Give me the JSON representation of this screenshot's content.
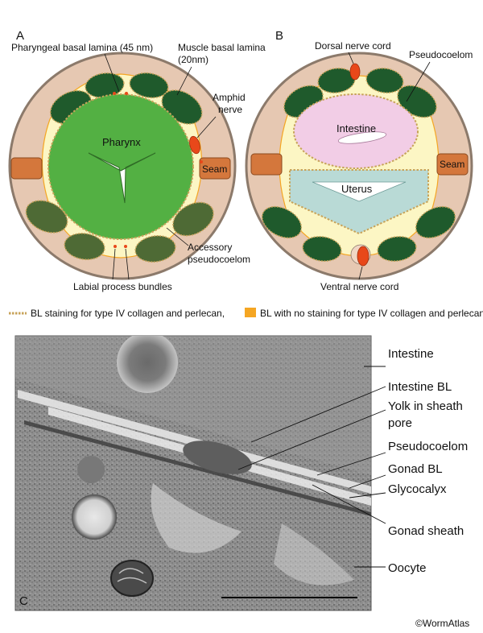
{
  "panels": {
    "a": "A",
    "b": "B",
    "c": "C"
  },
  "panel_a": {
    "pharyngeal_bl": "Pharyngeal basal lamina (45 nm)",
    "muscle_bl_line1": "Muscle basal lamina",
    "muscle_bl_line2": "(20nm)",
    "amphid_line1": "Amphid",
    "amphid_line2": "nerve",
    "pharynx": "Pharynx",
    "seam": "Seam",
    "accessory_line1": "Accessory",
    "accessory_line2": "pseudocoelom",
    "labial": "Labial process bundles"
  },
  "panel_b": {
    "dorsal": "Dorsal nerve cord",
    "pseudocoelom": "Pseudocoelom",
    "intestine": "Intestine",
    "seam": "Seam",
    "uterus": "Uterus",
    "ventral": "Ventral nerve cord"
  },
  "legend": {
    "item1": "BL staining for  type IV collagen and perlecan,",
    "item2": "BL with no staining for type IV collagen and perlecan."
  },
  "panel_c": {
    "intestine": "Intestine",
    "intestine_bl": "Intestine BL",
    "yolk_line1": "Yolk in sheath",
    "yolk_line2": "pore",
    "pseudocoelom": "Pseudocoelom",
    "gonad_bl": "Gonad BL",
    "glycocalyx": "Glycocalyx",
    "gonad_sheath": "Gonad sheath",
    "oocyte": "Oocyte"
  },
  "copyright": "©WormAtlas",
  "colors": {
    "cuticle": "#8c7a6b",
    "hypodermis": "#e6c8b2",
    "muscle": "#1f5a2c",
    "pharynx": "#53b043",
    "pseudocoelom": "#fcf6c4",
    "nerve": "#e8481a",
    "seam": "#d4773c",
    "intestine": "#f2cde6",
    "uterus": "#b9dad6",
    "bl_orange": "#f5a623"
  }
}
